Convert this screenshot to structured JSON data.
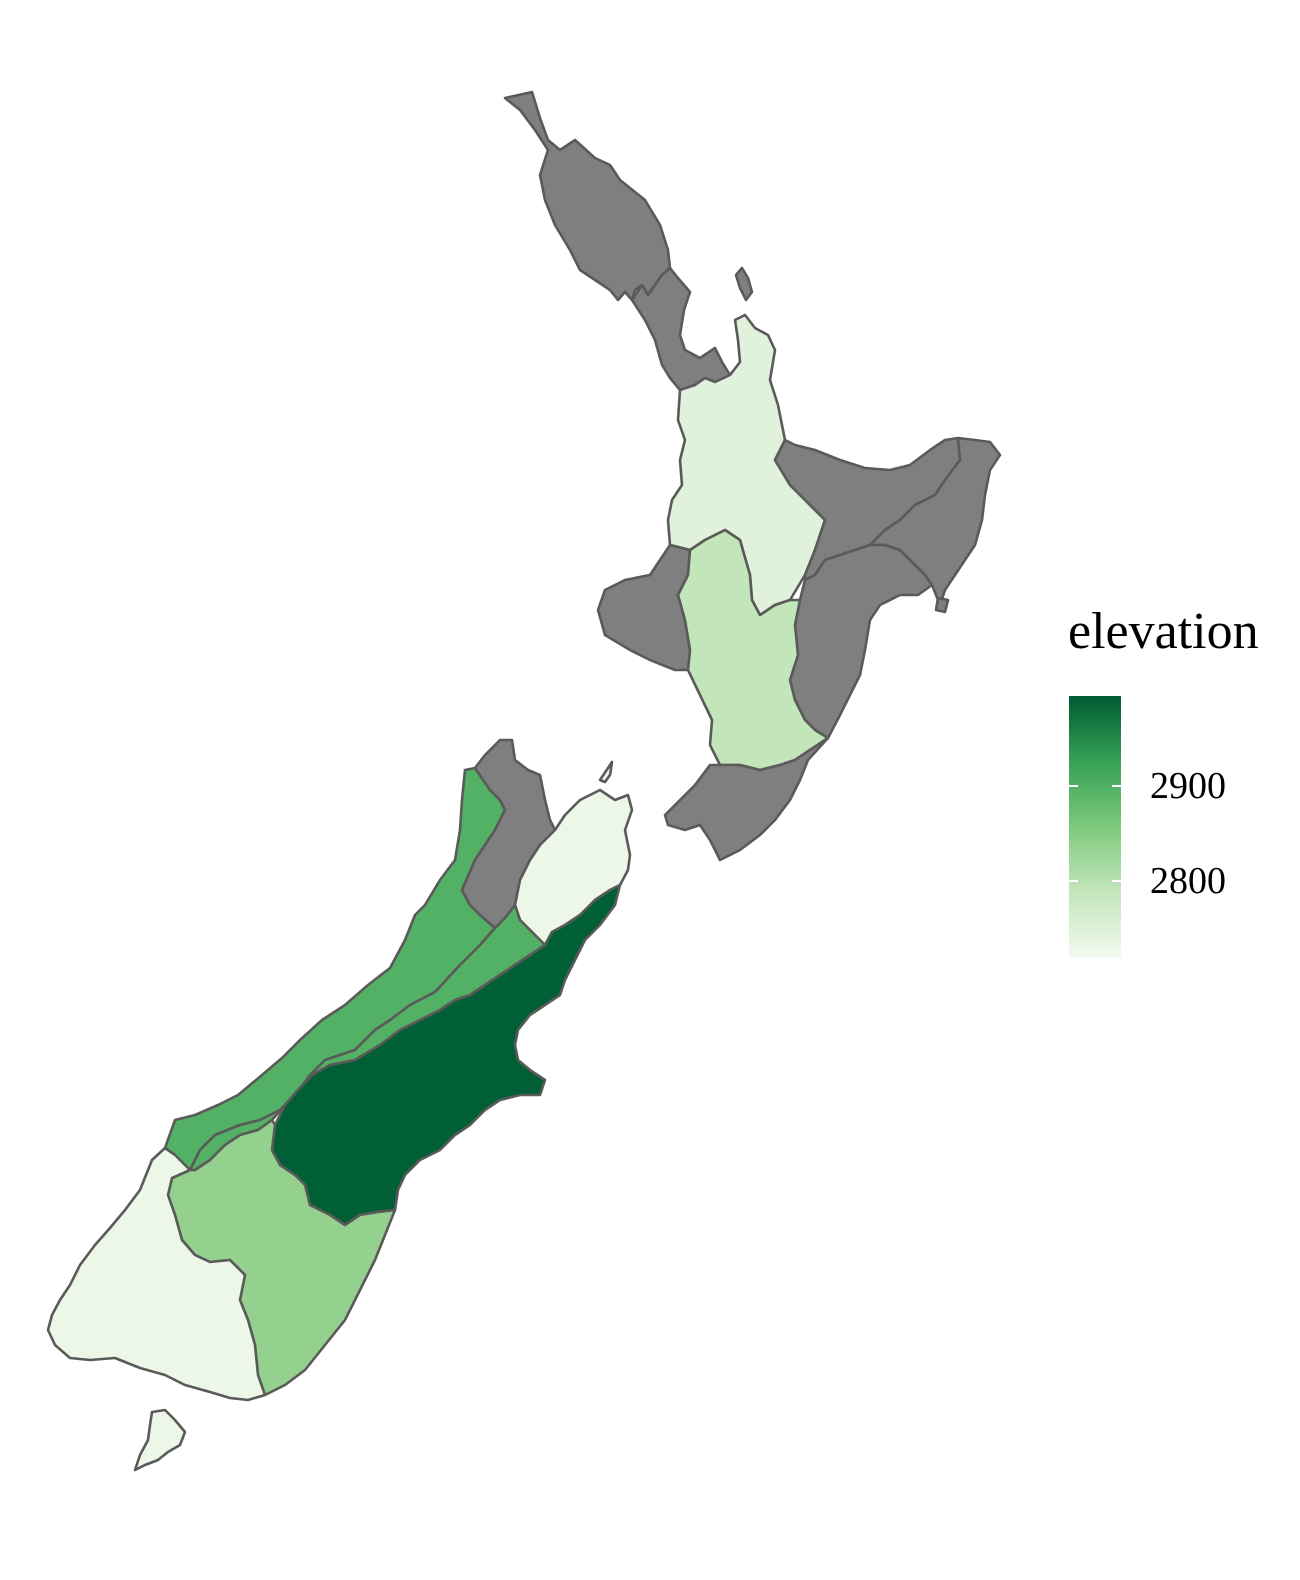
{
  "legend": {
    "title": "elevation",
    "labels": [
      {
        "text": "2900",
        "value": 2900
      },
      {
        "text": "2800",
        "value": 2800
      }
    ],
    "gradient": {
      "min_value": 2710,
      "max_value": 2990,
      "low_color": "#f2faef",
      "high_color": "#005a32"
    }
  },
  "colors": {
    "missing": "#7f7f7f",
    "border": "#5a5a5a",
    "scale": [
      "#f7fcf5",
      "#e5f5e0",
      "#c7e9c0",
      "#a1d99b",
      "#74c476",
      "#41ab5d",
      "#238b45",
      "#006d2c",
      "#00441b"
    ]
  },
  "regions": [
    {
      "id": "northland",
      "fill": "#7f7f7f"
    },
    {
      "id": "auckland",
      "fill": "#7f7f7f"
    },
    {
      "id": "waikato",
      "fill": "#e1f2dc"
    },
    {
      "id": "bay-of-plenty",
      "fill": "#7f7f7f"
    },
    {
      "id": "gisborne",
      "fill": "#7f7f7f"
    },
    {
      "id": "hawkes-bay",
      "fill": "#7f7f7f"
    },
    {
      "id": "taranaki",
      "fill": "#7f7f7f"
    },
    {
      "id": "manawatu-whanganui",
      "fill": "#c2e5b9"
    },
    {
      "id": "wellington",
      "fill": "#7f7f7f"
    },
    {
      "id": "tasman",
      "fill": "#52b164"
    },
    {
      "id": "nelson",
      "fill": "#7f7f7f"
    },
    {
      "id": "marlborough",
      "fill": "#ecf7e8"
    },
    {
      "id": "west-coast",
      "fill": "#52b164"
    },
    {
      "id": "canterbury",
      "fill": "#005f35"
    },
    {
      "id": "otago",
      "fill": "#95d18e"
    },
    {
      "id": "southland",
      "fill": "#ecf7e8"
    },
    {
      "id": "stewart-island",
      "fill": "#ecf7e8"
    }
  ]
}
